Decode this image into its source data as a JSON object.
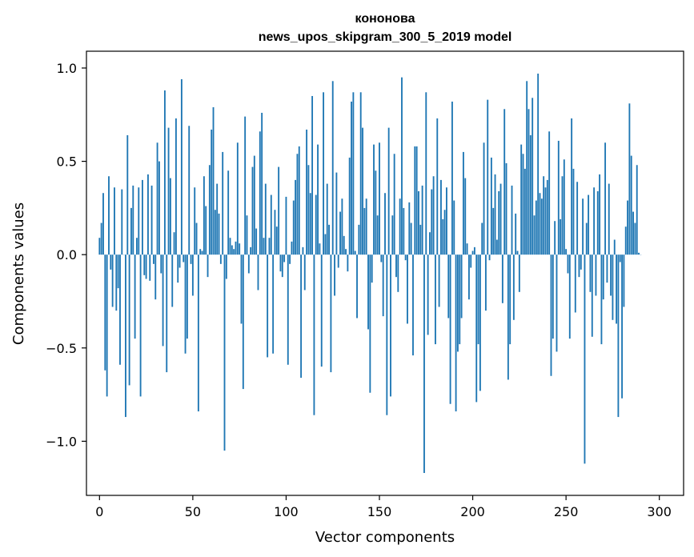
{
  "chart_data": {
    "type": "bar",
    "title": "кононова",
    "subtitle": "news_upos_skipgram_300_5_2019 model",
    "xlabel": "Vector components",
    "ylabel": "Components values",
    "xlim": [
      -7,
      313
    ],
    "ylim": [
      -1.29,
      1.09
    ],
    "xticks": [
      0,
      50,
      100,
      150,
      200,
      250,
      300
    ],
    "xtick_labels": [
      "0",
      "50",
      "100",
      "150",
      "200",
      "250",
      "300"
    ],
    "yticks": [
      -1.0,
      -0.5,
      0.0,
      0.5,
      1.0
    ],
    "ytick_labels": [
      "−1.0",
      "−0.5",
      "0.0",
      "0.5",
      "1.0"
    ],
    "grid": false,
    "bar_color": "#1f77b4",
    "series": [
      {
        "values": [
          0.09,
          0.17,
          0.33,
          -0.62,
          -0.76,
          0.42,
          -0.08,
          -0.28,
          0.36,
          -0.3,
          -0.18,
          -0.59,
          0.35,
          0.0,
          -0.87,
          0.64,
          -0.7,
          0.25,
          0.37,
          -0.45,
          0.09,
          0.36,
          -0.76,
          0.4,
          -0.11,
          -0.13,
          0.43,
          -0.14,
          0.37,
          -0.05,
          -0.24,
          0.6,
          0.5,
          -0.1,
          -0.49,
          0.88,
          -0.63,
          0.68,
          0.41,
          -0.28,
          0.12,
          0.73,
          -0.15,
          -0.07,
          0.94,
          -0.04,
          -0.53,
          -0.45,
          0.69,
          -0.05,
          -0.22,
          0.36,
          0.17,
          -0.84,
          0.03,
          0.02,
          0.42,
          0.26,
          -0.12,
          0.48,
          0.67,
          0.79,
          0.24,
          0.38,
          0.22,
          -0.05,
          0.55,
          -1.05,
          -0.13,
          0.45,
          0.09,
          0.05,
          0.03,
          0.07,
          0.6,
          0.06,
          -0.37,
          -0.72,
          0.74,
          0.21,
          -0.1,
          0.04,
          0.47,
          0.53,
          0.14,
          -0.19,
          0.66,
          0.76,
          0.09,
          0.38,
          -0.55,
          0.09,
          0.32,
          -0.53,
          0.24,
          0.15,
          0.47,
          -0.09,
          -0.12,
          -0.04,
          0.31,
          -0.59,
          -0.05,
          0.07,
          0.29,
          0.4,
          0.54,
          0.58,
          -0.66,
          0.04,
          -0.19,
          0.67,
          0.48,
          0.33,
          0.85,
          -0.86,
          0.32,
          0.59,
          0.06,
          -0.6,
          0.87,
          0.11,
          0.38,
          0.16,
          -0.63,
          0.93,
          -0.22,
          0.44,
          -0.07,
          0.23,
          0.3,
          0.1,
          0.03,
          -0.09,
          0.52,
          0.82,
          0.87,
          0.02,
          -0.34,
          0.16,
          0.87,
          0.68,
          0.25,
          0.3,
          -0.4,
          -0.74,
          -0.15,
          0.59,
          0.45,
          0.21,
          0.6,
          -0.04,
          -0.33,
          0.33,
          -0.86,
          0.68,
          -0.76,
          0.21,
          0.54,
          -0.12,
          -0.2,
          0.3,
          0.95,
          0.25,
          -0.03,
          -0.37,
          0.28,
          0.17,
          -0.54,
          0.58,
          0.58,
          0.34,
          0.16,
          0.37,
          -1.17,
          0.87,
          -0.43,
          0.12,
          0.35,
          0.42,
          -0.48,
          0.73,
          -0.28,
          0.4,
          0.19,
          0.24,
          0.36,
          -0.34,
          -0.8,
          0.82,
          0.29,
          -0.84,
          -0.52,
          -0.48,
          -0.34,
          0.55,
          0.41,
          0.06,
          -0.24,
          -0.07,
          0.02,
          0.04,
          -0.79,
          -0.48,
          -0.73,
          0.17,
          0.6,
          -0.3,
          0.83,
          -0.03,
          0.52,
          0.25,
          0.43,
          0.08,
          0.34,
          0.38,
          -0.26,
          0.78,
          0.49,
          -0.67,
          -0.48,
          0.37,
          -0.35,
          0.22,
          0.02,
          -0.2,
          0.59,
          0.54,
          0.46,
          0.93,
          0.78,
          0.64,
          0.84,
          0.21,
          0.29,
          0.97,
          0.33,
          0.3,
          0.42,
          0.36,
          0.4,
          0.66,
          -0.65,
          -0.45,
          0.18,
          -0.52,
          0.61,
          0.19,
          0.42,
          0.51,
          0.03,
          -0.1,
          -0.45,
          0.73,
          0.46,
          -0.31,
          0.39,
          -0.12,
          -0.08,
          0.3,
          -1.12,
          0.17,
          0.32,
          -0.2,
          -0.44,
          0.36,
          -0.22,
          0.34,
          0.43,
          -0.48,
          -0.24,
          0.6,
          -0.15,
          0.38,
          -0.22,
          -0.35,
          0.08,
          -0.37,
          -0.87,
          -0.04,
          -0.77,
          -0.28,
          0.15,
          0.29,
          0.81,
          0.53,
          0.23,
          0.17,
          0.48,
          0.01,
          0.0
        ]
      }
    ]
  }
}
